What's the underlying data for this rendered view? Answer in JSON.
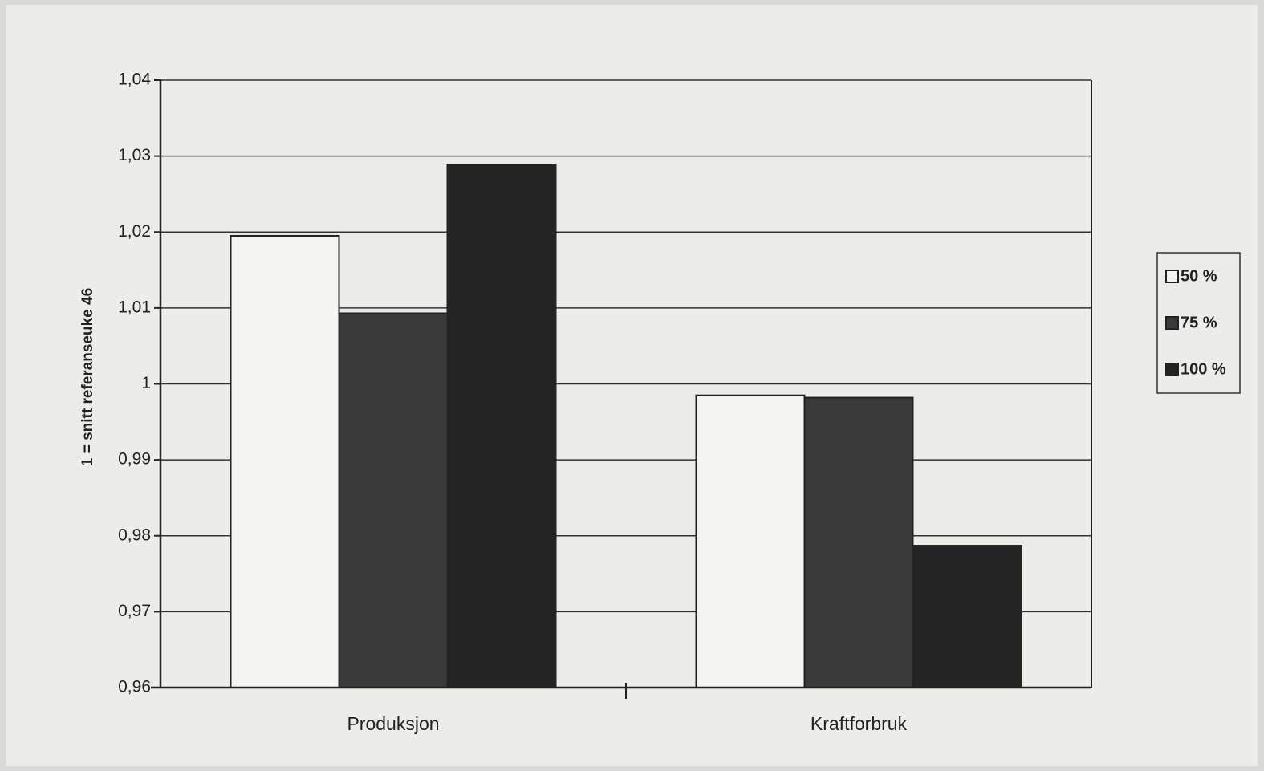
{
  "chart_data": {
    "type": "bar",
    "ylabel": "1 = snitt referanseuke 46",
    "categories": [
      "Produksjon",
      "Kraftforbruk"
    ],
    "series": [
      {
        "name": "50 %",
        "color": "#f4f4f2",
        "values": [
          1.0195,
          0.9985
        ]
      },
      {
        "name": "75 %",
        "color": "#3a3a3a",
        "values": [
          1.0093,
          0.9982
        ]
      },
      {
        "name": "100 %",
        "color": "#242424",
        "values": [
          1.0289,
          0.9787
        ]
      }
    ],
    "ylim": [
      0.96,
      1.04
    ],
    "yticks": [
      {
        "value": 0.96,
        "label": "0,96"
      },
      {
        "value": 0.97,
        "label": "0,97"
      },
      {
        "value": 0.98,
        "label": "0,98"
      },
      {
        "value": 0.99,
        "label": "0,99"
      },
      1,
      {
        "value": 1.01,
        "label": "1,01"
      },
      {
        "value": 1.02,
        "label": "1,02"
      },
      {
        "value": 1.03,
        "label": "1,03"
      },
      {
        "value": 1.04,
        "label": "1,04"
      }
    ],
    "grid": true,
    "legend": "right"
  }
}
